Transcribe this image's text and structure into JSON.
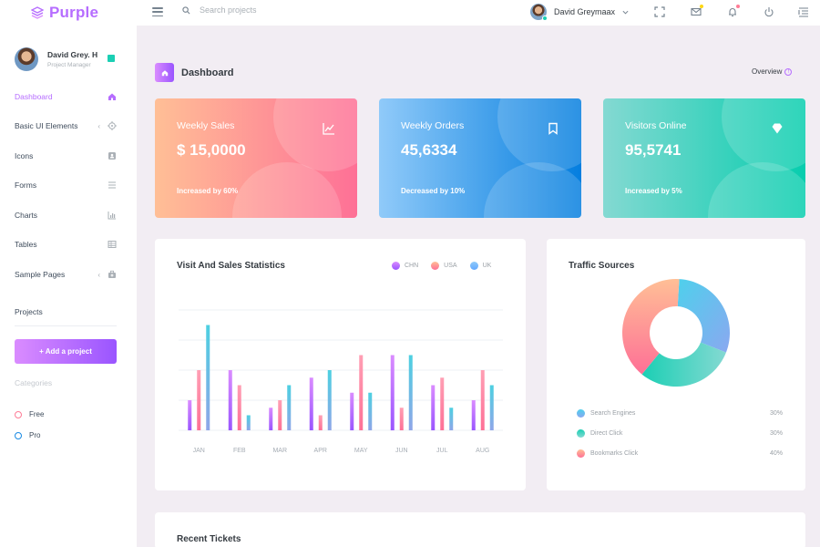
{
  "brand": {
    "name": "Purple"
  },
  "navbar": {
    "search_placeholder": "Search projects",
    "user_name": "David Greymaax",
    "icons": [
      "fullscreen-icon",
      "mail-icon",
      "bell-icon",
      "power-icon",
      "list-icon"
    ]
  },
  "sidebar": {
    "profile": {
      "name": "David Grey. H",
      "role": "Project Manager"
    },
    "items": [
      {
        "label": "Dashboard",
        "icon": "home-icon",
        "active": true,
        "expandable": false
      },
      {
        "label": "Basic UI Elements",
        "icon": "crosshairs-icon",
        "active": false,
        "expandable": true
      },
      {
        "label": "Icons",
        "icon": "contacts-icon",
        "active": false,
        "expandable": false
      },
      {
        "label": "Forms",
        "icon": "format-list-icon",
        "active": false,
        "expandable": false
      },
      {
        "label": "Charts",
        "icon": "chart-bar-icon",
        "active": false,
        "expandable": false
      },
      {
        "label": "Tables",
        "icon": "table-icon",
        "active": false,
        "expandable": false
      },
      {
        "label": "Sample Pages",
        "icon": "medical-bag-icon",
        "active": false,
        "expandable": true
      }
    ],
    "projects_title": "Projects",
    "add_project_label": "+ Add a project",
    "categories_title": "Categories",
    "categories": [
      {
        "label": "Free",
        "color": "#fe7c96"
      },
      {
        "label": "Pro",
        "color": "#198ae3"
      }
    ]
  },
  "page": {
    "title": "Dashboard",
    "overview_label": "Overview"
  },
  "stats": [
    {
      "title": "Weekly Sales",
      "value": "$ 15,0000",
      "foot": "Increased by 60%",
      "icon": "chart-line-icon"
    },
    {
      "title": "Weekly Orders",
      "value": "45,6334",
      "foot": "Decreased by 10%",
      "icon": "bookmark-icon"
    },
    {
      "title": "Visitors Online",
      "value": "95,5741",
      "foot": "Increased by 5%",
      "icon": "diamond-icon"
    }
  ],
  "colors": {
    "accent": "#b66dff",
    "chn": "#9a55ff",
    "usa": "#fe7096",
    "uk": "#62a9ff",
    "search_engines": "#4ec0f3",
    "direct_click": "#1bcfb4",
    "bookmarks_click": "#fe7c96"
  },
  "sales_chart": {
    "title": "Visit And Sales Statistics",
    "chart_data": {
      "type": "bar",
      "categories": [
        "JAN",
        "FEB",
        "MAR",
        "APR",
        "MAY",
        "JUN",
        "JUL",
        "AUG"
      ],
      "series": [
        {
          "name": "CHN",
          "values": [
            20,
            40,
            15,
            35,
            25,
            50,
            30,
            20
          ]
        },
        {
          "name": "USA",
          "values": [
            40,
            30,
            20,
            10,
            50,
            15,
            35,
            40
          ]
        },
        {
          "name": "UK",
          "values": [
            70,
            10,
            30,
            40,
            25,
            50,
            15,
            30
          ]
        }
      ],
      "ylim": [
        0,
        80
      ]
    }
  },
  "traffic": {
    "title": "Traffic Sources",
    "chart_data": {
      "type": "pie",
      "labels": [
        "Search Engines",
        "Direct Click",
        "Bookmarks Click"
      ],
      "values": [
        30,
        30,
        40
      ],
      "display": [
        "30%",
        "30%",
        "40%"
      ]
    }
  },
  "tickets": {
    "title": "Recent Tickets"
  }
}
